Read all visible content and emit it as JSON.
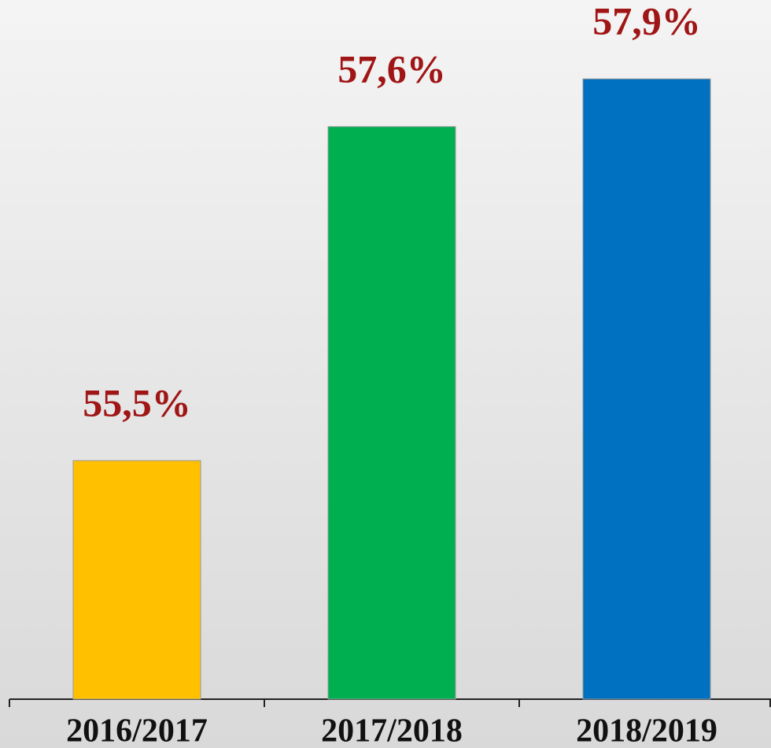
{
  "chart_data": {
    "type": "bar",
    "categories": [
      "2016/2017",
      "2017/2018",
      "2018/2019"
    ],
    "values": [
      55.5,
      57.6,
      57.9
    ],
    "value_labels": [
      "55,5%",
      "57,6%",
      "57,9%"
    ],
    "colors": [
      "#ffc000",
      "#00b050",
      "#0070c0"
    ],
    "ylim": [
      54,
      58
    ]
  }
}
